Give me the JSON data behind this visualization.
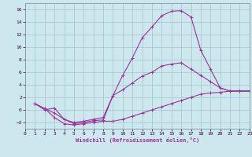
{
  "xlabel": "Windchill (Refroidissement éolien,°C)",
  "bg_color": "#cce8ee",
  "grid_color": "#aacccc",
  "line_color": "#993399",
  "xlim": [
    0,
    23
  ],
  "ylim": [
    -3,
    17
  ],
  "xticks": [
    0,
    1,
    2,
    3,
    4,
    5,
    6,
    7,
    8,
    9,
    10,
    11,
    12,
    13,
    14,
    15,
    16,
    17,
    18,
    19,
    20,
    21,
    22,
    23
  ],
  "yticks": [
    -2,
    0,
    2,
    4,
    6,
    8,
    10,
    12,
    14,
    16
  ],
  "curve1_x": [
    1,
    2,
    3,
    4,
    5,
    6,
    7,
    8,
    9,
    10,
    11,
    12,
    13,
    14,
    15,
    16,
    17,
    18,
    19,
    20,
    21,
    22,
    23
  ],
  "curve1_y": [
    1.0,
    0.0,
    0.3,
    -1.5,
    -2.2,
    -2.0,
    -1.7,
    -1.6,
    2.3,
    5.5,
    8.3,
    11.5,
    13.2,
    15.0,
    15.7,
    15.8,
    14.8,
    9.5,
    6.5,
    3.5,
    3.0,
    3.0,
    3.0
  ],
  "curve2_x": [
    1,
    2,
    3,
    4,
    5,
    6,
    7,
    8,
    9,
    10,
    11,
    12,
    13,
    14,
    15,
    16,
    17,
    18,
    19,
    20,
    21,
    22,
    23
  ],
  "curve2_y": [
    1.0,
    0.2,
    -1.2,
    -2.2,
    -2.4,
    -2.2,
    -2.0,
    -1.8,
    -1.8,
    -1.5,
    -1.0,
    -0.5,
    0.0,
    0.5,
    1.0,
    1.5,
    2.0,
    2.5,
    2.7,
    2.8,
    3.0,
    3.0,
    3.0
  ],
  "curve3_x": [
    1,
    2,
    3,
    4,
    5,
    6,
    7,
    8,
    9,
    10,
    11,
    12,
    13,
    14,
    15,
    16,
    17,
    18,
    19,
    20,
    21,
    22,
    23
  ],
  "curve3_y": [
    1.0,
    0.2,
    -0.5,
    -1.5,
    -2.0,
    -1.8,
    -1.5,
    -1.2,
    2.3,
    3.2,
    4.3,
    5.4,
    6.0,
    7.0,
    7.3,
    7.5,
    6.5,
    5.5,
    4.5,
    3.5,
    3.0,
    3.0,
    3.0
  ]
}
